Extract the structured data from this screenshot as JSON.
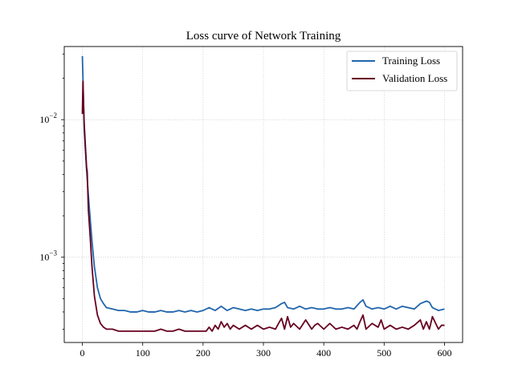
{
  "chart_data": {
    "type": "line",
    "title": "Loss curve of Network Training",
    "xlabel": "",
    "ylabel": "",
    "yscale": "log",
    "xlim": [
      -30,
      630
    ],
    "ylim": [
      0.00024,
      0.034
    ],
    "grid": true,
    "legend_position": "top-right",
    "x_ticks": [
      0,
      100,
      200,
      300,
      400,
      500,
      600
    ],
    "x_tick_labels": [
      "0",
      "100",
      "200",
      "300",
      "400",
      "500",
      "600"
    ],
    "y_ticks": [
      0.001,
      0.01
    ],
    "y_tick_labels": [
      {
        "base": "10",
        "exp": "−3"
      },
      {
        "base": "10",
        "exp": "−2"
      }
    ],
    "series": [
      {
        "name": "Training Loss",
        "color": "#2166ac",
        "x": [
          0,
          1,
          2,
          3,
          5,
          7,
          10,
          13,
          16,
          20,
          25,
          30,
          35,
          40,
          50,
          60,
          70,
          80,
          90,
          100,
          110,
          120,
          130,
          140,
          150,
          160,
          170,
          180,
          190,
          200,
          210,
          220,
          230,
          240,
          250,
          260,
          270,
          280,
          290,
          300,
          310,
          320,
          330,
          335,
          340,
          350,
          360,
          370,
          380,
          390,
          400,
          410,
          420,
          430,
          440,
          450,
          460,
          465,
          470,
          480,
          490,
          500,
          510,
          520,
          530,
          540,
          550,
          560,
          570,
          575,
          580,
          590,
          600
        ],
        "values": [
          0.029,
          0.02,
          0.013,
          0.0085,
          0.006,
          0.0043,
          0.0028,
          0.0019,
          0.0013,
          0.00085,
          0.0006,
          0.0005,
          0.00046,
          0.00043,
          0.00042,
          0.00041,
          0.00041,
          0.0004,
          0.0004,
          0.00041,
          0.0004,
          0.0004,
          0.00041,
          0.0004,
          0.0004,
          0.00041,
          0.0004,
          0.00041,
          0.0004,
          0.00041,
          0.00043,
          0.00041,
          0.00044,
          0.00041,
          0.00043,
          0.00042,
          0.00041,
          0.00042,
          0.00041,
          0.00042,
          0.00042,
          0.00043,
          0.00046,
          0.00047,
          0.00043,
          0.00042,
          0.00044,
          0.00042,
          0.00043,
          0.00042,
          0.00042,
          0.00043,
          0.00042,
          0.00042,
          0.00043,
          0.00042,
          0.00047,
          0.00049,
          0.00044,
          0.00042,
          0.00043,
          0.00042,
          0.00044,
          0.00042,
          0.00044,
          0.00043,
          0.00042,
          0.00046,
          0.00048,
          0.00047,
          0.00043,
          0.00041,
          0.00042
        ]
      },
      {
        "name": "Validation Loss",
        "color": "#67001f",
        "x": [
          0,
          1,
          2,
          3,
          5,
          7,
          8,
          10,
          13,
          16,
          20,
          25,
          30,
          35,
          40,
          50,
          60,
          70,
          80,
          90,
          100,
          110,
          120,
          130,
          140,
          150,
          160,
          170,
          180,
          190,
          200,
          205,
          210,
          215,
          220,
          225,
          230,
          235,
          240,
          245,
          250,
          260,
          270,
          280,
          290,
          300,
          310,
          320,
          325,
          330,
          335,
          340,
          345,
          350,
          360,
          370,
          380,
          385,
          390,
          400,
          410,
          420,
          430,
          440,
          450,
          455,
          460,
          465,
          470,
          480,
          490,
          495,
          500,
          510,
          520,
          530,
          540,
          550,
          560,
          565,
          570,
          575,
          580,
          590,
          595,
          600
        ],
        "values": [
          0.011,
          0.019,
          0.013,
          0.0095,
          0.0065,
          0.0045,
          0.0042,
          0.0022,
          0.0014,
          0.00085,
          0.00052,
          0.00038,
          0.00033,
          0.00031,
          0.0003,
          0.0003,
          0.00029,
          0.00029,
          0.00029,
          0.00029,
          0.00029,
          0.00029,
          0.00029,
          0.0003,
          0.00029,
          0.00029,
          0.0003,
          0.00029,
          0.00029,
          0.00029,
          0.00029,
          0.00029,
          0.00031,
          0.00029,
          0.00032,
          0.0003,
          0.00034,
          0.00031,
          0.00033,
          0.0003,
          0.00032,
          0.0003,
          0.00032,
          0.0003,
          0.00032,
          0.0003,
          0.00031,
          0.0003,
          0.00033,
          0.00036,
          0.0003,
          0.00037,
          0.00031,
          0.00033,
          0.0003,
          0.00035,
          0.0003,
          0.00032,
          0.00033,
          0.0003,
          0.00033,
          0.0003,
          0.00031,
          0.0003,
          0.00032,
          0.0003,
          0.00034,
          0.00038,
          0.0003,
          0.00033,
          0.00031,
          0.00035,
          0.0003,
          0.00032,
          0.0003,
          0.00031,
          0.0003,
          0.00032,
          0.00035,
          0.0003,
          0.00034,
          0.0003,
          0.00037,
          0.0003,
          0.00032,
          0.00032
        ]
      }
    ]
  }
}
